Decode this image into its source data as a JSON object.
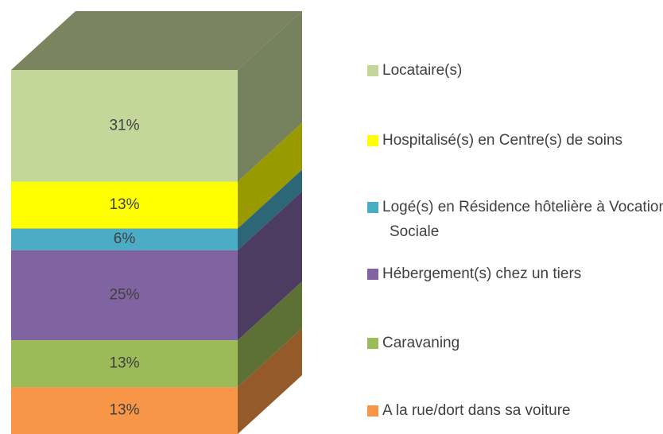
{
  "chart_data": {
    "type": "stacked-bar-3d",
    "categories": [
      "Locataire(s)",
      "Hospitalisé(s) en Centre(s) de soins",
      "Logé(s) en Résidence hôtelière à Vocation Sociale",
      "Hébergement(s) chez un tiers",
      "Caravaning",
      "A la rue/dort dans sa voiture"
    ],
    "values": [
      31,
      13,
      6,
      25,
      13,
      13
    ],
    "value_labels": [
      "31%",
      "13%",
      "6%",
      "25%",
      "13%",
      "13%"
    ],
    "colors": [
      "#c4d79b",
      "#ffff00",
      "#4bacc6",
      "#8064a2",
      "#9bbb59",
      "#f79646"
    ],
    "legend": "right"
  }
}
